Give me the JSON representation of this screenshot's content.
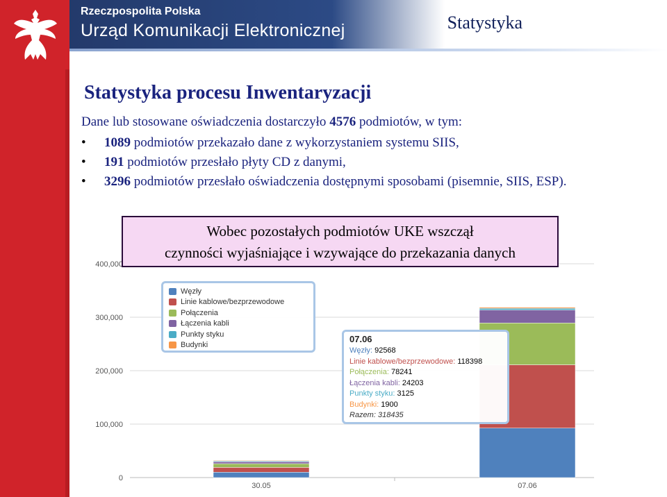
{
  "header": {
    "brand_small": "Rzeczpospolita Polska",
    "brand_big": "Urząd Komunikacji Elektronicznej",
    "page_tag": "Statystyka"
  },
  "title": "Statystyka procesu Inwentaryzacji",
  "intro": {
    "prefix": "Dane lub stosowane oświadczenia dostarczyło ",
    "count": "4576",
    "suffix": " podmiotów, w tym:"
  },
  "items": [
    {
      "n": "1089",
      "text": " podmiotów przekazało dane z wykorzystaniem systemu SIIS,"
    },
    {
      "n": "191",
      "text": " podmiotów przesłało płyty CD z danymi,"
    },
    {
      "n": "3296",
      "text": " podmiotów przesłało oświadczenia dostępnymi sposobami (pisemnie, SIIS, ESP)."
    }
  ],
  "callout": {
    "line1": "Wobec pozostałych podmiotów UKE wszczął",
    "line2": "czynności wyjaśniające i wzywające do przekazania danych"
  },
  "colors": {
    "wezly": "#4f81bd",
    "linie": "#c0504d",
    "polaczenia": "#9bbb59",
    "laczenia": "#8064a2",
    "punkty": "#4bacc6",
    "budynki": "#f79646"
  },
  "chart_data": {
    "type": "bar",
    "stacked": true,
    "categories": [
      "30.05",
      "07.06"
    ],
    "ylim": [
      0,
      400000
    ],
    "yticks": [
      "0",
      "100,000",
      "200,000",
      "300,000",
      "400,000"
    ],
    "grid": true,
    "legend_position": "top-left",
    "series": [
      {
        "name": "Węzły",
        "values": [
          10000,
          92568
        ]
      },
      {
        "name": "Linie kablowe/bezprzewodowe",
        "values": [
          9000,
          118398
        ]
      },
      {
        "name": "Połączenia",
        "values": [
          7000,
          78241
        ]
      },
      {
        "name": "Łączenia kabli",
        "values": [
          3500,
          24203
        ]
      },
      {
        "name": "Punkty styku",
        "values": [
          1500,
          3125
        ]
      },
      {
        "name": "Budynki",
        "values": [
          1000,
          1900
        ]
      }
    ]
  },
  "tooltip": {
    "date": "07.06",
    "rows": [
      {
        "label": "Węzły",
        "value": "92568"
      },
      {
        "label": "Linie kablowe/bezprzewodowe",
        "value": "118398"
      },
      {
        "label": "Połączenia",
        "value": "78241"
      },
      {
        "label": "Łączenia kabli",
        "value": "24203"
      },
      {
        "label": "Punkty styku",
        "value": "3125"
      },
      {
        "label": "Budynki",
        "value": "1900"
      }
    ],
    "total_label": "Razem",
    "total_value": "318435"
  }
}
